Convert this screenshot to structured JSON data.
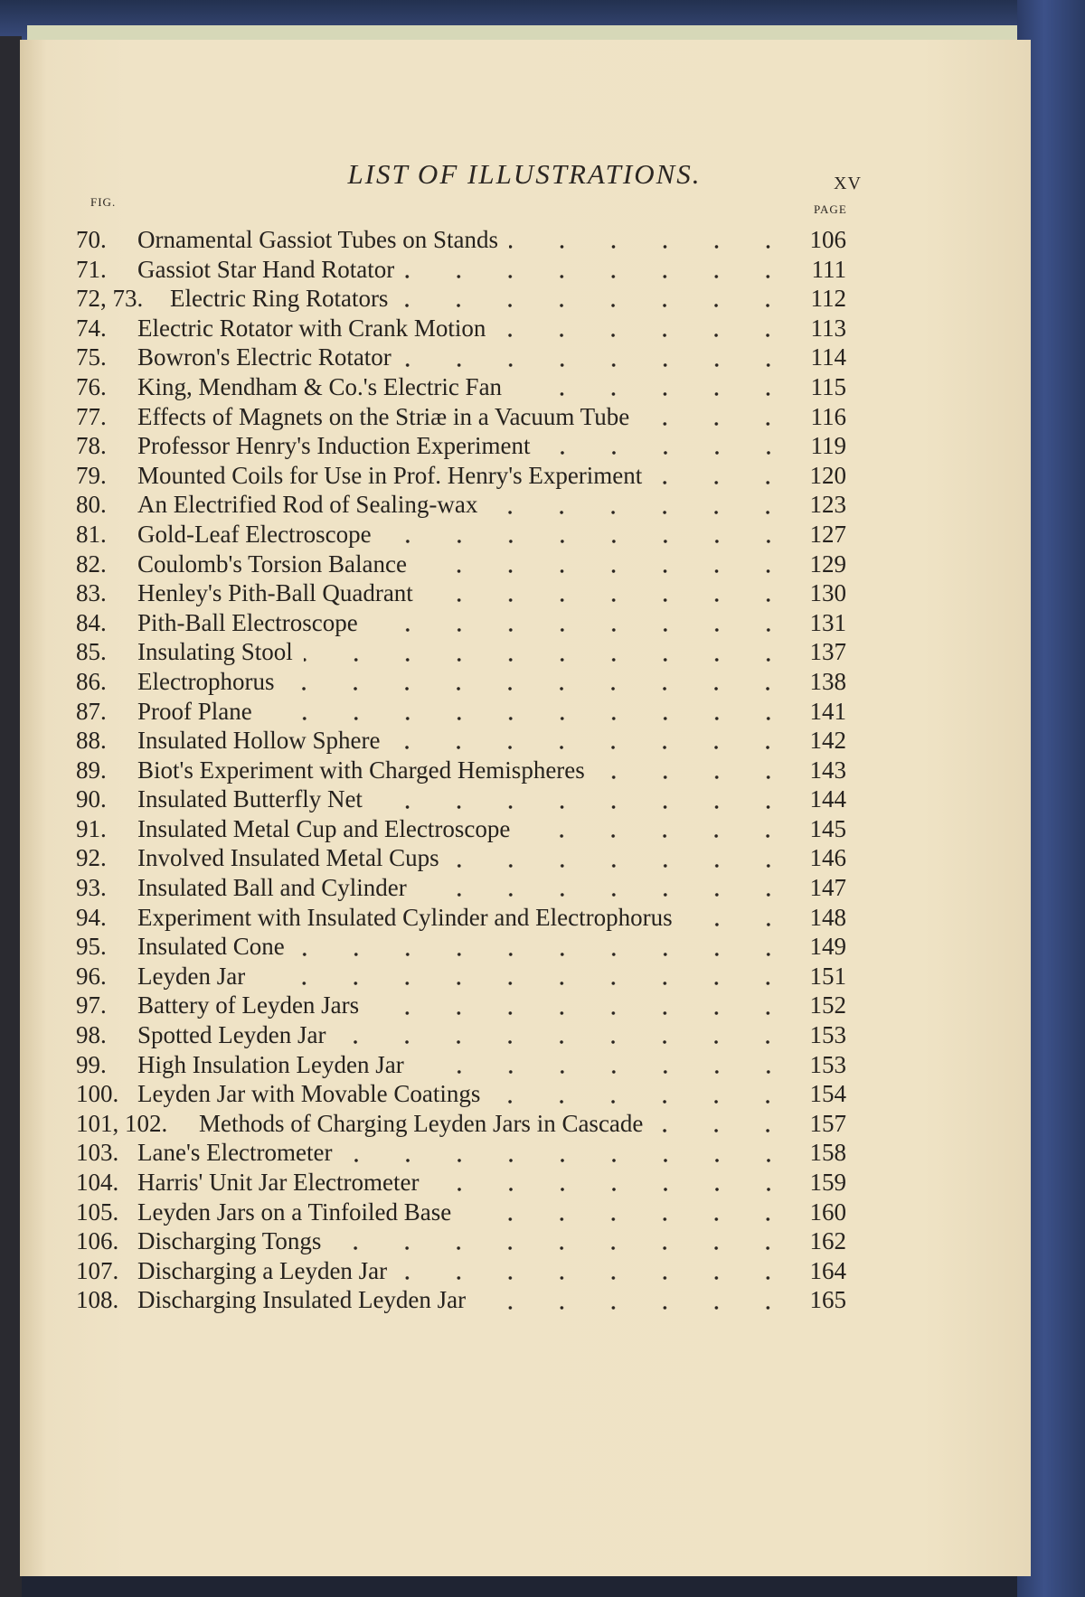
{
  "header": {
    "title": "LIST OF ILLUSTRATIONS.",
    "folio": "XV",
    "fig_label": "FIG.",
    "page_label": "PAGE"
  },
  "entries": [
    {
      "fig": "70.",
      "title": "Ornamental Gassiot Tubes on Stands",
      "page": "106"
    },
    {
      "fig": "71.",
      "title": "Gassiot Star Hand Rotator",
      "page": "111"
    },
    {
      "fig": "72, 73.",
      "title": "Electric Ring Rotators",
      "page": "112"
    },
    {
      "fig": "74.",
      "title": "Electric Rotator with Crank Motion",
      "page": "113"
    },
    {
      "fig": "75.",
      "title": "Bowron's Electric Rotator",
      "page": "114"
    },
    {
      "fig": "76.",
      "title": "King, Mendham & Co.'s Electric Fan",
      "page": "115"
    },
    {
      "fig": "77.",
      "title": "Effects of Magnets on the Striæ in a Vacuum Tube",
      "page": "116"
    },
    {
      "fig": "78.",
      "title": "Professor Henry's Induction Experiment",
      "page": "119"
    },
    {
      "fig": "79.",
      "title": "Mounted Coils for Use in Prof. Henry's Experiment",
      "page": "120"
    },
    {
      "fig": "80.",
      "title": "An Electrified Rod of Sealing-wax",
      "page": "123"
    },
    {
      "fig": "81.",
      "title": "Gold-Leaf Electroscope",
      "page": "127"
    },
    {
      "fig": "82.",
      "title": "Coulomb's Torsion Balance",
      "page": "129"
    },
    {
      "fig": "83.",
      "title": "Henley's Pith-Ball Quadrant",
      "page": "130"
    },
    {
      "fig": "84.",
      "title": "Pith-Ball Electroscope",
      "page": "131"
    },
    {
      "fig": "85.",
      "title": "Insulating Stool",
      "page": "137"
    },
    {
      "fig": "86.",
      "title": "Electrophorus",
      "page": "138"
    },
    {
      "fig": "87.",
      "title": "Proof Plane",
      "page": "141"
    },
    {
      "fig": "88.",
      "title": "Insulated Hollow Sphere",
      "page": "142"
    },
    {
      "fig": "89.",
      "title": "Biot's Experiment with Charged Hemispheres",
      "page": "143"
    },
    {
      "fig": "90.",
      "title": "Insulated Butterfly Net",
      "page": "144"
    },
    {
      "fig": "91.",
      "title": "Insulated Metal Cup and Electroscope",
      "page": "145"
    },
    {
      "fig": "92.",
      "title": "Involved Insulated Metal Cups",
      "page": "146"
    },
    {
      "fig": "93.",
      "title": "Insulated Ball and Cylinder",
      "page": "147"
    },
    {
      "fig": "94.",
      "title": "Experiment with Insulated Cylinder and Electrophorus",
      "page": "148"
    },
    {
      "fig": "95.",
      "title": "Insulated Cone",
      "page": "149"
    },
    {
      "fig": "96.",
      "title": "Leyden Jar",
      "page": "151"
    },
    {
      "fig": "97.",
      "title": "Battery of Leyden Jars",
      "page": "152"
    },
    {
      "fig": "98.",
      "title": "Spotted Leyden Jar",
      "page": "153"
    },
    {
      "fig": "99.",
      "title": "High Insulation Leyden Jar",
      "page": "153"
    },
    {
      "fig": "100.",
      "title": "Leyden Jar with Movable Coatings",
      "page": "154"
    },
    {
      "fig": "101, 102.",
      "title": "Methods of Charging Leyden Jars in Cascade",
      "page": "157"
    },
    {
      "fig": "103.",
      "title": "Lane's Electrometer",
      "page": "158"
    },
    {
      "fig": "104.",
      "title": "Harris' Unit Jar Electrometer",
      "page": "159"
    },
    {
      "fig": "105.",
      "title": "Leyden Jars on a Tinfoiled Base",
      "page": "160"
    },
    {
      "fig": "106.",
      "title": "Discharging Tongs",
      "page": "162"
    },
    {
      "fig": "107.",
      "title": "Discharging a Leyden Jar",
      "page": "164"
    },
    {
      "fig": "108.",
      "title": "Discharging Insulated Leyden Jar",
      "page": "165"
    }
  ]
}
